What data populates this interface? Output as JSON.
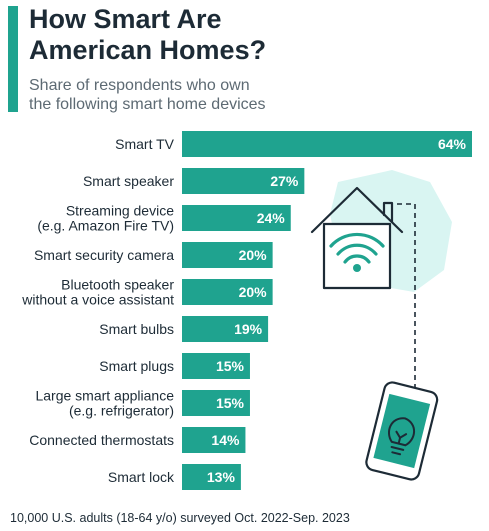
{
  "header": {
    "title": "How Smart Are\nAmerican Homes?",
    "subtitle": "Share of respondents who own\nthe following smart home devices"
  },
  "footer": {
    "note": "10,000 U.S. adults (18-64 y/o) surveyed Oct. 2022-Sep. 2023"
  },
  "colors": {
    "accent": "#1fa38f",
    "bar": "#1fa38f",
    "illustration_bg": "#d9f5f2",
    "text": "#1d2b36",
    "subtitle": "#5d6a73"
  },
  "illustration": {
    "icons": [
      "house-wifi-icon",
      "smartphone-lightbulb-icon"
    ]
  },
  "chart_data": {
    "type": "bar",
    "orientation": "horizontal",
    "categories": [
      "Smart TV",
      "Smart speaker",
      "Streaming device\n(e.g. Amazon Fire TV)",
      "Smart security camera",
      "Bluetooth speaker\nwithout a voice assistant",
      "Smart bulbs",
      "Smart plugs",
      "Large smart appliance\n(e.g. refrigerator)",
      "Connected thermostats",
      "Smart lock"
    ],
    "values": [
      64,
      27,
      24,
      20,
      20,
      19,
      15,
      15,
      14,
      13
    ],
    "value_labels": [
      "64%",
      "27%",
      "24%",
      "20%",
      "20%",
      "19%",
      "15%",
      "15%",
      "14%",
      "13%"
    ],
    "unit": "%",
    "xlim": [
      0,
      64
    ],
    "grid": false,
    "legend": "none"
  }
}
